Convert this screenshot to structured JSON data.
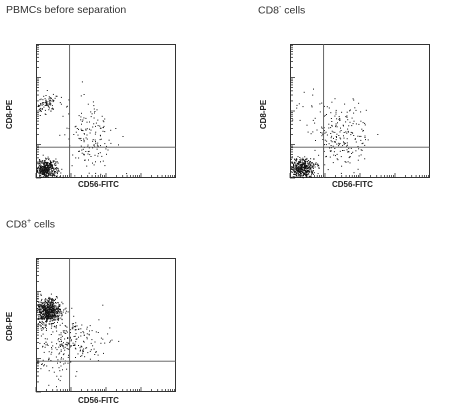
{
  "panels": [
    {
      "title_base": "PBMCs before separation",
      "title_sup": "",
      "title_suffix": "",
      "xlabel": "CD56-FITC",
      "ylabel": "CD8-PE"
    },
    {
      "title_base": "CD8",
      "title_sup": "-",
      "title_suffix": " cells",
      "xlabel": "CD56-FITC",
      "ylabel": "CD8-PE"
    },
    {
      "title_base": "CD8",
      "title_sup": "+",
      "title_suffix": " cells",
      "xlabel": "CD56-FITC",
      "ylabel": "CD8-PE"
    }
  ],
  "chart_data": [
    {
      "type": "scatter",
      "title": "PBMCs before separation",
      "xlabel": "CD56-FITC",
      "ylabel": "CD8-PE",
      "xlim": [
        0,
        1
      ],
      "ylim": [
        0,
        1
      ],
      "quadrant_gate": {
        "x": 0.24,
        "y": 0.23
      },
      "populations": [
        {
          "cx": 0.07,
          "cy": 0.07,
          "sx": 0.04,
          "sy": 0.035,
          "n": 420
        },
        {
          "cx": 0.07,
          "cy": 0.56,
          "sx": 0.04,
          "sy": 0.04,
          "n": 90
        },
        {
          "cx": 0.38,
          "cy": 0.33,
          "sx": 0.09,
          "sy": 0.14,
          "n": 160
        }
      ]
    },
    {
      "type": "scatter",
      "title": "CD8- cells",
      "xlabel": "CD56-FITC",
      "ylabel": "CD8-PE",
      "xlim": [
        0,
        1
      ],
      "ylim": [
        0,
        1
      ],
      "quadrant_gate": {
        "x": 0.24,
        "y": 0.23
      },
      "populations": [
        {
          "cx": 0.08,
          "cy": 0.07,
          "sx": 0.05,
          "sy": 0.04,
          "n": 480
        },
        {
          "cx": 0.36,
          "cy": 0.3,
          "sx": 0.1,
          "sy": 0.12,
          "n": 190
        },
        {
          "cx": 0.25,
          "cy": 0.45,
          "sx": 0.15,
          "sy": 0.1,
          "n": 40
        }
      ]
    },
    {
      "type": "scatter",
      "title": "CD8+ cells",
      "xlabel": "CD56-FITC",
      "ylabel": "CD8-PE",
      "xlim": [
        0,
        1
      ],
      "ylim": [
        0,
        1
      ],
      "quadrant_gate": {
        "x": 0.24,
        "y": 0.23
      },
      "populations": [
        {
          "cx": 0.08,
          "cy": 0.6,
          "sx": 0.05,
          "sy": 0.05,
          "n": 700
        },
        {
          "cx": 0.25,
          "cy": 0.4,
          "sx": 0.12,
          "sy": 0.08,
          "n": 200
        },
        {
          "cx": 0.12,
          "cy": 0.25,
          "sx": 0.07,
          "sy": 0.1,
          "n": 60
        }
      ]
    }
  ]
}
